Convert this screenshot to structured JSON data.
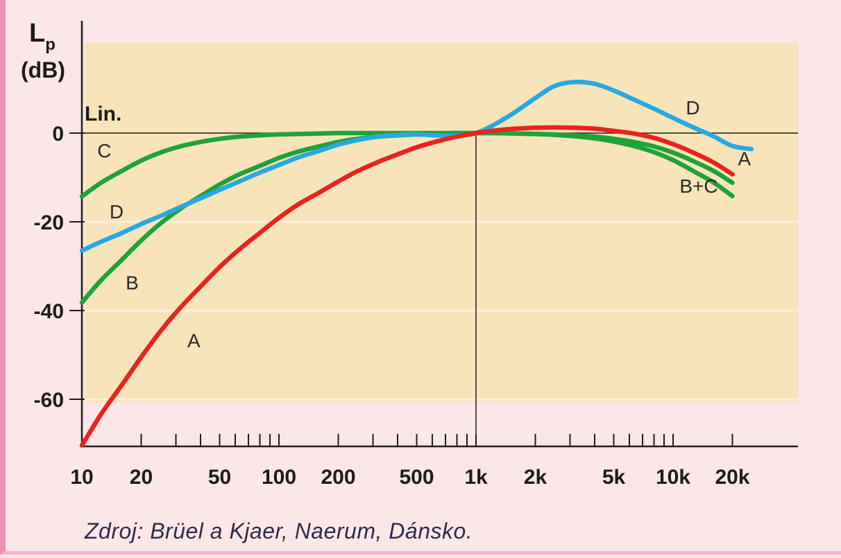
{
  "chart_data": {
    "type": "line",
    "y_axis_label_main": "L",
    "y_axis_label_sub": "p",
    "y_axis_unit": "(dB)",
    "reference_label": "Lin.",
    "x_scale": "log",
    "xlim": [
      10,
      30000
    ],
    "ylim": [
      -70,
      18
    ],
    "y_ticks": [
      0,
      -20,
      -40,
      -60
    ],
    "y_tick_labels": [
      "0",
      "-20",
      "-40",
      "-60"
    ],
    "x_ticks": [
      10,
      20,
      50,
      100,
      200,
      500,
      1000,
      2000,
      5000,
      10000,
      20000
    ],
    "x_tick_labels": [
      "10",
      "20",
      "50",
      "100",
      "200",
      "500",
      "1k",
      "2k",
      "5k",
      "10k",
      "20k"
    ],
    "grid": false,
    "series": [
      {
        "name": "A",
        "color": "#e8231e",
        "x": [
          10,
          12.5,
          16,
          20,
          25,
          31.5,
          40,
          50,
          63,
          80,
          100,
          125,
          160,
          200,
          250,
          315,
          400,
          500,
          630,
          800,
          1000,
          1250,
          1600,
          2000,
          2500,
          3150,
          4000,
          5000,
          6300,
          8000,
          10000,
          12500,
          16000,
          20000
        ],
        "values": [
          -70.4,
          -63.4,
          -56.7,
          -50.5,
          -44.7,
          -39.4,
          -34.6,
          -30.2,
          -26.2,
          -22.5,
          -19.1,
          -16.1,
          -13.4,
          -10.9,
          -8.6,
          -6.6,
          -4.8,
          -3.2,
          -1.9,
          -0.8,
          0,
          0.6,
          1.0,
          1.2,
          1.3,
          1.2,
          1.0,
          0.5,
          -0.1,
          -1.1,
          -2.5,
          -4.3,
          -6.6,
          -9.3
        ]
      },
      {
        "name": "B",
        "color": "#1fa23a",
        "x": [
          10,
          12.5,
          16,
          20,
          25,
          31.5,
          40,
          50,
          63,
          80,
          100,
          125,
          160,
          200,
          250,
          315,
          400,
          500,
          630,
          800,
          1000,
          1250,
          1600,
          2000,
          2500,
          3150,
          4000,
          5000,
          6300,
          8000,
          10000,
          12500,
          16000,
          20000
        ],
        "values": [
          -38.2,
          -33.2,
          -28.5,
          -24.2,
          -20.4,
          -17.1,
          -14.2,
          -11.6,
          -9.3,
          -7.4,
          -5.6,
          -4.2,
          -3.0,
          -2.0,
          -1.3,
          -0.8,
          -0.5,
          -0.3,
          -0.1,
          0,
          0,
          0,
          -0.1,
          -0.2,
          -0.4,
          -0.7,
          -1.2,
          -1.9,
          -2.9,
          -4.3,
          -6.1,
          -8.4,
          -11.1,
          -14.2
        ]
      },
      {
        "name": "C",
        "color": "#1fa23a",
        "x": [
          10,
          12.5,
          16,
          20,
          25,
          31.5,
          40,
          50,
          63,
          80,
          100,
          125,
          160,
          200,
          250,
          315,
          400,
          500,
          630,
          800,
          1000,
          1250,
          1600,
          2000,
          2500,
          3150,
          4000,
          5000,
          6300,
          8000,
          10000,
          12500,
          16000,
          20000
        ],
        "values": [
          -14.3,
          -11.2,
          -8.5,
          -6.2,
          -4.4,
          -3.0,
          -2.0,
          -1.3,
          -0.8,
          -0.5,
          -0.3,
          -0.2,
          -0.1,
          0,
          0,
          0,
          0,
          0,
          0,
          0,
          0,
          0,
          -0.1,
          -0.2,
          -0.3,
          -0.5,
          -0.8,
          -1.3,
          -2.0,
          -3.0,
          -4.4,
          -6.2,
          -8.5,
          -11.2
        ]
      },
      {
        "name": "D",
        "color": "#27a9e1",
        "x": [
          10,
          12.5,
          16,
          20,
          25,
          31.5,
          40,
          50,
          63,
          80,
          100,
          125,
          160,
          200,
          250,
          315,
          400,
          500,
          630,
          800,
          1000,
          1250,
          1600,
          2000,
          2500,
          3150,
          4000,
          5000,
          6300,
          8000,
          10000,
          12500,
          16000,
          20000,
          25000
        ],
        "values": [
          -26.5,
          -24.5,
          -22.5,
          -20.5,
          -18.7,
          -16.7,
          -14.7,
          -12.8,
          -10.9,
          -8.9,
          -7.2,
          -5.5,
          -4.0,
          -2.6,
          -1.6,
          -0.8,
          -0.4,
          -0.3,
          -0.5,
          -0.6,
          0,
          2.0,
          4.9,
          7.9,
          10.6,
          11.5,
          11.1,
          9.6,
          7.6,
          5.5,
          3.4,
          1.4,
          -0.7,
          -2.9,
          -3.6
        ]
      }
    ],
    "curve_labels": [
      {
        "text": "C",
        "x": 13,
        "y": -5.5
      },
      {
        "text": "D",
        "x": 15,
        "y": -19.2
      },
      {
        "text": "B",
        "x": 18,
        "y": -35.2
      },
      {
        "text": "A",
        "x": 37,
        "y": -48.3
      },
      {
        "text": "D",
        "x": 12600,
        "y": 4.2
      },
      {
        "text": "A",
        "x": 23000,
        "y": -7.3
      },
      {
        "text": "B+C",
        "x": 13500,
        "y": -13.4
      }
    ],
    "source": "Zdroj: Brüel a Kjaer, Naerum, Dánsko."
  }
}
